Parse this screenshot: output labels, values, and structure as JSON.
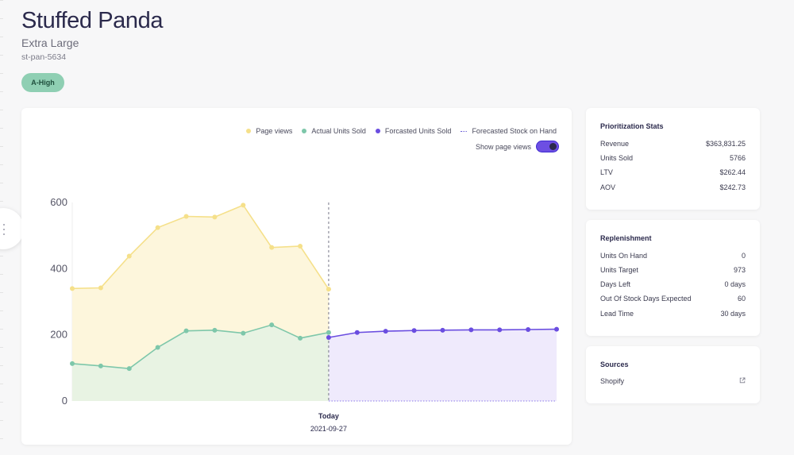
{
  "product": {
    "title": "Stuffed Panda",
    "variant": "Extra Large",
    "sku": "st-pan-5634",
    "badge": "A-High"
  },
  "legend": {
    "page_views": "Page views",
    "actual_units": "Actual Units Sold",
    "forecast_units": "Forcasted Units Sold",
    "forecast_stock": "Forecasted Stock on Hand"
  },
  "toggle": {
    "label": "Show page views",
    "on": true
  },
  "colors": {
    "page_views": "#f5e08a",
    "page_views_fill": "#fdf6dc",
    "actual": "#7ec7aa",
    "actual_fill": "#e8f3e3",
    "forecast": "#6a4de0",
    "forecast_fill": "#efeafc",
    "badge_bg": "#8fcfb3"
  },
  "chart_data": {
    "type": "area",
    "yticks": [
      0,
      200,
      400,
      600
    ],
    "ylim": [
      0,
      600
    ],
    "x_index_range": [
      0,
      17
    ],
    "today_index": 9,
    "today_label": "Today",
    "today_date": "2021-09-27",
    "series": [
      {
        "name": "Page views",
        "x": [
          0,
          1,
          2,
          3,
          4,
          5,
          6,
          7,
          8,
          9
        ],
        "values": [
          340,
          342,
          438,
          524,
          558,
          556,
          592,
          464,
          468,
          338
        ]
      },
      {
        "name": "Actual Units Sold",
        "x": [
          0,
          1,
          2,
          3,
          4,
          5,
          6,
          7,
          8,
          9
        ],
        "values": [
          113,
          106,
          98,
          162,
          212,
          214,
          205,
          230,
          190,
          207
        ]
      },
      {
        "name": "Forcasted Units Sold",
        "x": [
          9,
          10,
          11,
          12,
          13,
          14,
          15,
          16,
          17
        ],
        "values": [
          192,
          207,
          211,
          213,
          214,
          215,
          215,
          216,
          217
        ]
      }
    ]
  },
  "prioritization": {
    "title": "Prioritization Stats",
    "rows": [
      {
        "label": "Revenue",
        "value": "$363,831.25"
      },
      {
        "label": "Units Sold",
        "value": "5766"
      },
      {
        "label": "LTV",
        "value": "$262.44"
      },
      {
        "label": "AOV",
        "value": "$242.73"
      }
    ]
  },
  "replenishment": {
    "title": "Replenishment",
    "rows": [
      {
        "label": "Units On Hand",
        "value": "0"
      },
      {
        "label": "Units Target",
        "value": "973"
      },
      {
        "label": "Days Left",
        "value": "0 days"
      },
      {
        "label": "Out Of Stock Days Expected",
        "value": "60"
      },
      {
        "label": "Lead Time",
        "value": "30 days"
      }
    ]
  },
  "sources": {
    "title": "Sources",
    "items": [
      {
        "label": "Shopify",
        "icon": "external-link-icon"
      }
    ]
  }
}
